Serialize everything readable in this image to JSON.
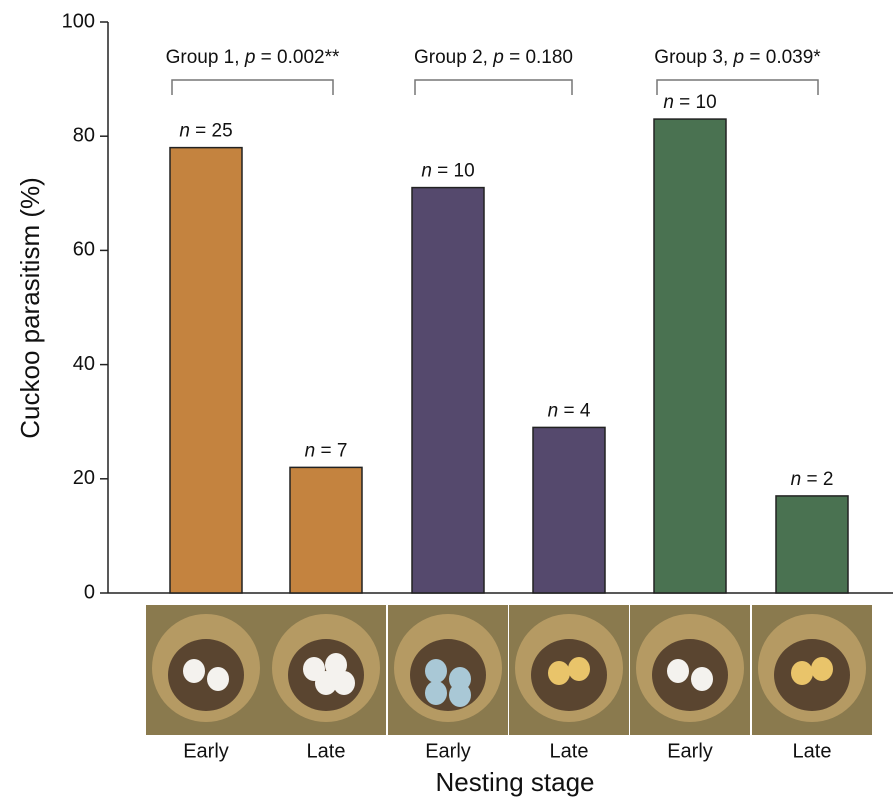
{
  "chart_data": {
    "type": "bar",
    "ylabel": "Cuckoo parasitism (%)",
    "xlabel": "Nesting stage",
    "categories": [
      "Early",
      "Late",
      "Early",
      "Late",
      "Early",
      "Late"
    ],
    "values": [
      78,
      22,
      71,
      29,
      83,
      17
    ],
    "colors": [
      "#c4833f",
      "#c4833f",
      "#55496d",
      "#55496d",
      "#4a7251",
      "#4a7251"
    ],
    "sample_labels": [
      {
        "symbol": "n",
        "text": " = 25"
      },
      {
        "symbol": "n",
        "text": " = 7"
      },
      {
        "symbol": "n",
        "text": " = 10"
      },
      {
        "symbol": "n",
        "text": " = 4"
      },
      {
        "symbol": "n",
        "text": " = 10"
      },
      {
        "symbol": "n",
        "text": " = 2"
      }
    ],
    "groups": [
      {
        "label": "Group 1, ",
        "symbol": "p",
        "text": " = 0.002**"
      },
      {
        "label": "Group 2, ",
        "symbol": "p",
        "text": " = 0.180"
      },
      {
        "label": "Group 3, ",
        "symbol": "p",
        "text": " = 0.039*"
      }
    ],
    "ylim": [
      0,
      100
    ],
    "yticks": [
      0,
      20,
      40,
      60,
      80,
      100
    ]
  }
}
